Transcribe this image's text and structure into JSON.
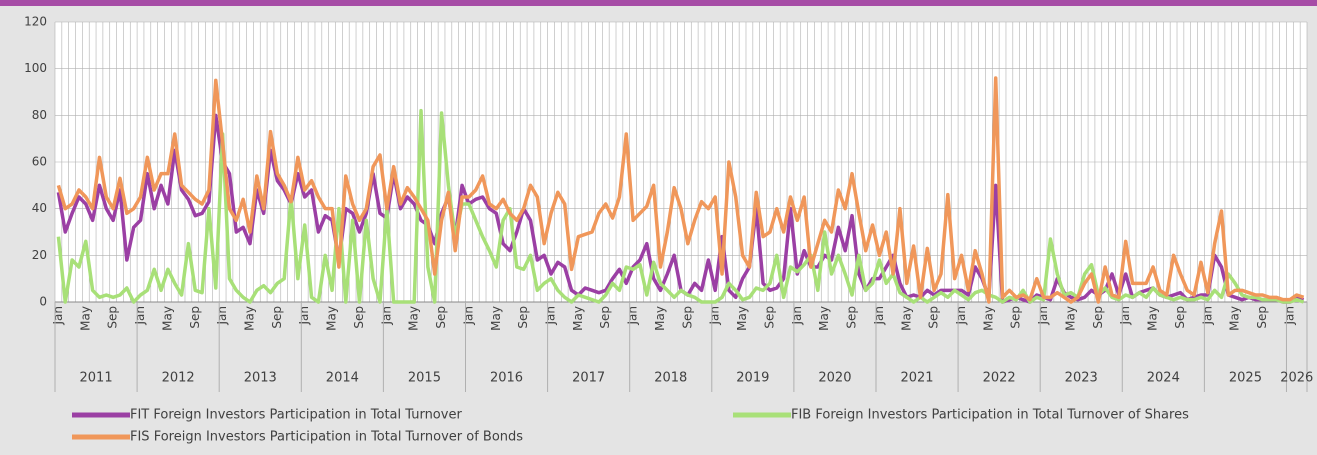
{
  "chart_data": {
    "type": "line",
    "years": [
      "2011",
      "2012",
      "2013",
      "2014",
      "2015",
      "2016",
      "2017",
      "2018",
      "2019",
      "2020",
      "2021",
      "2022",
      "2023",
      "2024",
      "2025",
      "2026"
    ],
    "categories": [
      "Jan",
      null,
      null,
      null,
      "May",
      null,
      null,
      null,
      "Sep",
      null,
      null,
      null,
      "Jan",
      null,
      null,
      null,
      "May",
      null,
      null,
      null,
      "Sep",
      null,
      null,
      null,
      "Jan",
      null,
      null,
      null,
      "May",
      null,
      null,
      null,
      "Sep",
      null,
      null,
      null,
      "Jan",
      null,
      null,
      null,
      "May",
      null,
      null,
      null,
      "Sep",
      null,
      null,
      null,
      "Jan",
      null,
      null,
      null,
      "May",
      null,
      null,
      null,
      "Sep",
      null,
      null,
      null,
      "Jan",
      null,
      null,
      null,
      "May",
      null,
      null,
      null,
      "Sep",
      null,
      null,
      null,
      "Jan",
      null,
      null,
      null,
      "May",
      null,
      null,
      null,
      "Sep",
      null,
      null,
      null,
      "Jan",
      null,
      null,
      null,
      "May",
      null,
      null,
      null,
      "Sep",
      null,
      null,
      null,
      "Jan",
      null,
      null,
      null,
      "May",
      null,
      null,
      null,
      "Sep",
      null,
      null,
      null,
      "Jan",
      null,
      null,
      null,
      "May",
      null,
      null,
      null,
      "Sep",
      null,
      null,
      null,
      "Jan",
      null,
      null,
      null,
      "May",
      null,
      null,
      null,
      "Sep",
      null,
      null,
      null,
      "Jan",
      null,
      null,
      null,
      "May",
      null,
      null,
      null,
      "Sep",
      null,
      null,
      null,
      "Jan",
      null,
      null,
      null,
      "May",
      null,
      null,
      null,
      "Sep",
      null,
      null,
      null,
      "Jan",
      null,
      null,
      null,
      "May",
      null,
      null,
      null,
      "Sep",
      null,
      null,
      null,
      "Jan",
      null,
      null,
      null,
      "May",
      null,
      null,
      null,
      "Sep",
      null,
      null,
      null,
      "Jan",
      null,
      null
    ],
    "series": [
      {
        "name": "FIT Foreign Investors Participation in Total Turnover",
        "color": "#9b3fa4",
        "values": [
          47,
          30,
          38,
          45,
          42,
          35,
          50,
          40,
          35,
          48,
          18,
          32,
          35,
          55,
          40,
          50,
          42,
          65,
          48,
          44,
          37,
          38,
          43,
          80,
          60,
          55,
          30,
          32,
          25,
          48,
          38,
          65,
          52,
          48,
          42,
          55,
          45,
          48,
          30,
          37,
          35,
          18,
          40,
          38,
          30,
          38,
          55,
          38,
          36,
          55,
          40,
          45,
          42,
          35,
          33,
          25,
          38,
          45,
          28,
          50,
          42,
          44,
          45,
          40,
          38,
          25,
          22,
          30,
          40,
          35,
          18,
          20,
          12,
          17,
          15,
          5,
          3,
          6,
          5,
          4,
          5,
          10,
          14,
          8,
          15,
          18,
          25,
          10,
          5,
          12,
          20,
          5,
          3,
          8,
          5,
          18,
          5,
          28,
          5,
          2,
          10,
          15,
          40,
          8,
          5,
          6,
          10,
          40,
          12,
          22,
          15,
          15,
          20,
          18,
          32,
          22,
          37,
          12,
          5,
          10,
          10,
          15,
          20,
          8,
          2,
          3,
          2,
          5,
          3,
          5,
          5,
          5,
          5,
          3,
          15,
          10,
          2,
          50,
          0,
          1,
          2,
          1,
          0,
          3,
          2,
          1,
          10,
          4,
          2,
          1,
          2,
          5,
          3,
          5,
          12,
          3,
          12,
          2,
          4,
          5,
          6,
          3,
          2,
          3,
          4,
          1,
          2,
          3,
          3,
          20,
          15,
          3,
          2,
          1,
          2,
          1,
          1,
          1,
          1,
          0,
          0,
          2,
          1
        ]
      },
      {
        "name": "FIB Foreign Investors Participation in Total Turnover of Shares",
        "color": "#a8e078",
        "values": [
          28,
          0,
          18,
          15,
          26,
          5,
          2,
          3,
          2,
          3,
          6,
          0,
          3,
          5,
          14,
          5,
          14,
          8,
          3,
          25,
          5,
          4,
          40,
          6,
          72,
          10,
          5,
          2,
          0,
          5,
          7,
          4,
          8,
          10,
          45,
          10,
          33,
          2,
          0,
          20,
          5,
          40,
          0,
          35,
          0,
          35,
          10,
          0,
          40,
          0,
          0,
          0,
          0,
          82,
          15,
          0,
          81,
          50,
          28,
          42,
          42,
          35,
          28,
          22,
          15,
          35,
          40,
          15,
          14,
          20,
          5,
          8,
          10,
          5,
          2,
          0,
          3,
          2,
          1,
          0,
          3,
          8,
          5,
          15,
          14,
          16,
          3,
          17,
          8,
          5,
          2,
          5,
          3,
          2,
          0,
          0,
          0,
          2,
          8,
          5,
          1,
          2,
          6,
          5,
          8,
          20,
          2,
          15,
          13,
          16,
          20,
          5,
          30,
          12,
          20,
          12,
          3,
          20,
          5,
          8,
          18,
          8,
          12,
          4,
          2,
          0,
          2,
          0,
          2,
          4,
          2,
          5,
          3,
          1,
          4,
          5,
          3,
          2,
          0,
          2,
          1,
          5,
          0,
          2,
          1,
          27,
          12,
          3,
          4,
          2,
          12,
          16,
          3,
          6,
          2,
          1,
          3,
          2,
          4,
          2,
          6,
          3,
          2,
          1,
          2,
          1,
          1,
          2,
          1,
          5,
          2,
          12,
          8,
          3,
          2,
          2,
          1,
          1,
          1,
          0,
          0,
          1,
          0
        ]
      },
      {
        "name": "FIS Foreign Investors Participation in Total Turnover of Bonds",
        "color": "#f0975a",
        "values": [
          50,
          40,
          42,
          48,
          45,
          40,
          62,
          45,
          40,
          53,
          38,
          40,
          45,
          62,
          48,
          55,
          55,
          72,
          50,
          47,
          44,
          42,
          48,
          95,
          68,
          40,
          35,
          44,
          30,
          54,
          40,
          73,
          55,
          50,
          43,
          62,
          48,
          52,
          45,
          40,
          40,
          15,
          54,
          42,
          35,
          40,
          58,
          63,
          40,
          58,
          42,
          49,
          45,
          40,
          35,
          12,
          35,
          47,
          22,
          45,
          45,
          48,
          54,
          42,
          40,
          44,
          38,
          35,
          40,
          50,
          45,
          25,
          38,
          47,
          42,
          14,
          28,
          29,
          30,
          38,
          42,
          36,
          45,
          72,
          35,
          38,
          41,
          50,
          15,
          30,
          49,
          40,
          25,
          35,
          43,
          40,
          45,
          12,
          60,
          45,
          20,
          15,
          47,
          28,
          30,
          40,
          30,
          45,
          35,
          45,
          15,
          25,
          35,
          30,
          48,
          40,
          55,
          38,
          22,
          33,
          20,
          30,
          12,
          40,
          8,
          24,
          2,
          23,
          5,
          12,
          46,
          10,
          20,
          5,
          22,
          12,
          0,
          96,
          2,
          5,
          2,
          3,
          1,
          10,
          2,
          2,
          4,
          2,
          0,
          2,
          8,
          12,
          0,
          15,
          3,
          2,
          26,
          8,
          8,
          8,
          15,
          5,
          3,
          20,
          12,
          5,
          3,
          17,
          4,
          25,
          39,
          3,
          5,
          5,
          4,
          3,
          3,
          2,
          2,
          1,
          1,
          3,
          2
        ]
      }
    ],
    "ylim": [
      0,
      120
    ],
    "yticks": [
      0,
      20,
      40,
      60,
      80,
      100,
      120
    ],
    "grid": true
  }
}
